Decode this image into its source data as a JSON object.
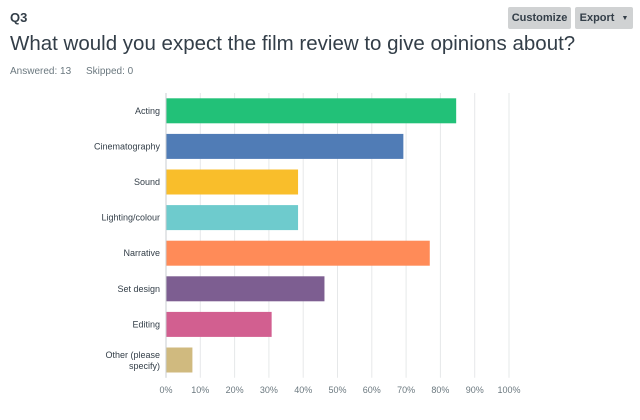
{
  "question": {
    "number": "Q3",
    "text": "What would you expect the film review to give opinions about?",
    "answered": "Answered: 13",
    "skipped": "Skipped: 0"
  },
  "toolbar": {
    "customize_label": "Customize",
    "export_label": "Export"
  },
  "chart_data": {
    "type": "bar",
    "orientation": "horizontal",
    "categories": [
      "Acting",
      "Cinematography",
      "Sound",
      "Lighting/colour",
      "Narrative",
      "Set design",
      "Editing",
      "Other (please specify)"
    ],
    "values": [
      84.6,
      69.2,
      38.5,
      38.5,
      76.9,
      46.2,
      30.8,
      7.7
    ],
    "colors": [
      "#22c178",
      "#507cb6",
      "#f9be2b",
      "#6ecbcd",
      "#ff8b58",
      "#7d5e91",
      "#d25f90",
      "#d0ba7f"
    ],
    "xlim": [
      0,
      100
    ],
    "xticks": [
      "0%",
      "10%",
      "20%",
      "30%",
      "40%",
      "50%",
      "60%",
      "70%",
      "80%",
      "90%",
      "100%"
    ],
    "grid": true
  }
}
